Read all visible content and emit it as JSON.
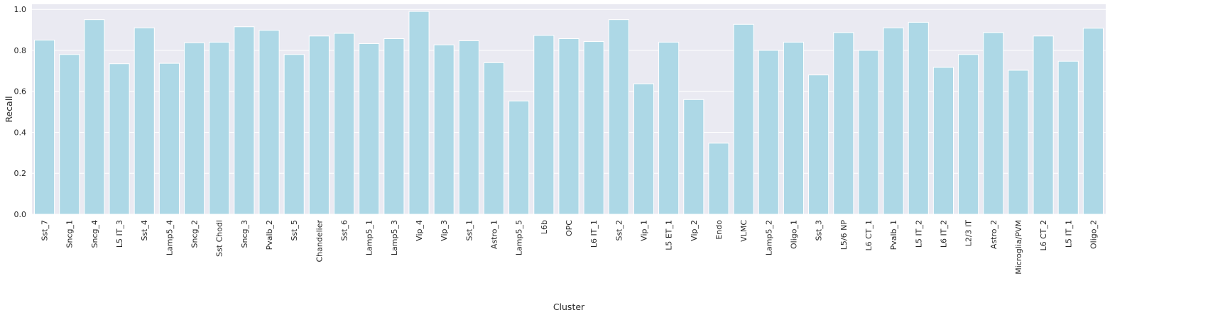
{
  "chart_data": {
    "type": "bar",
    "title": "",
    "xlabel": "Cluster",
    "ylabel": "Recall",
    "ylim": [
      0,
      1.025
    ],
    "yticks": [
      "0.0",
      "0.2",
      "0.4",
      "0.6",
      "0.8",
      "1.0"
    ],
    "ytick_values": [
      0,
      0.2,
      0.4,
      0.6,
      0.8,
      1.0
    ],
    "grid": true,
    "legend": "none",
    "bar_color": "#add8e6",
    "background_color": "#eaeaf2",
    "grid_color": "#ffffff",
    "categories": [
      "Sst_7",
      "Sncg_1",
      "Sncg_4",
      "L5 IT_3",
      "Sst_4",
      "Lamp5_4",
      "Sncg_2",
      "Sst Chodl",
      "Sncg_3",
      "Pvalb_2",
      "Sst_5",
      "Chandelier",
      "Sst_6",
      "Lamp5_1",
      "Lamp5_3",
      "Vip_4",
      "Vip_3",
      "Sst_1",
      "Astro_1",
      "Lamp5_5",
      "L6b",
      "OPC",
      "L6 IT_1",
      "Sst_2",
      "Vip_1",
      "L5 ET_1",
      "Vip_2",
      "Endo",
      "VLMC",
      "Lamp5_2",
      "Oligo_1",
      "Sst_3",
      "L5/6 NP",
      "L6 CT_1",
      "Pvalb_1",
      "L5 IT_2",
      "L6 IT_2",
      "L2/3 IT",
      "Astro_2",
      "Microglia/PVM",
      "L6 CT_2",
      "L5 IT_1",
      "Oligo_2"
    ],
    "values": [
      0.85,
      0.78,
      0.95,
      0.735,
      0.91,
      0.737,
      0.837,
      0.84,
      0.915,
      0.898,
      0.78,
      0.87,
      0.883,
      0.833,
      0.857,
      0.99,
      0.827,
      0.847,
      0.74,
      0.553,
      0.873,
      0.857,
      0.843,
      0.95,
      0.637,
      0.84,
      0.56,
      0.347,
      0.927,
      0.8,
      0.84,
      0.68,
      0.887,
      0.8,
      0.91,
      0.937,
      0.717,
      0.78,
      0.887,
      0.703,
      0.87,
      0.747,
      0.908
    ]
  }
}
